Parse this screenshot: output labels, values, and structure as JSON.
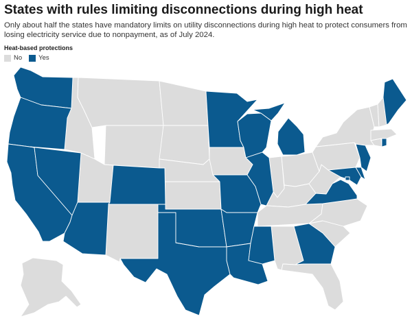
{
  "title": "States with rules limiting disconnections during high heat",
  "subtitle": "Only about half the states have mandatory limits on utility disconnections during high heat to protect consumers from losing electricity service due to nonpayment, as of July 2024.",
  "legend": {
    "title": "Heat-based protections",
    "items": [
      {
        "label": "No",
        "color": "#dcdcdc"
      },
      {
        "label": "Yes",
        "color": "#0b5a8f"
      }
    ]
  },
  "colors": {
    "no": "#dcdcdc",
    "yes": "#0b5a8f"
  },
  "states_with_protections": [
    "Washington",
    "Oregon",
    "California",
    "Nevada",
    "Arizona",
    "Colorado",
    "Texas",
    "Oklahoma",
    "Arkansas",
    "Louisiana",
    "Missouri",
    "Minnesota",
    "Wisconsin",
    "Illinois",
    "Michigan",
    "Mississippi",
    "Georgia",
    "Virginia",
    "Maryland",
    "Delaware",
    "New Jersey",
    "Rhode Island",
    "Maine",
    "District of Columbia"
  ],
  "states_without_protections": [
    "Idaho",
    "Montana",
    "Wyoming",
    "Utah",
    "New Mexico",
    "North Dakota",
    "South Dakota",
    "Nebraska",
    "Kansas",
    "Iowa",
    "Indiana",
    "Ohio",
    "Kentucky",
    "Tennessee",
    "Alabama",
    "Florida",
    "South Carolina",
    "North Carolina",
    "West Virginia",
    "Pennsylvania",
    "New York",
    "Vermont",
    "New Hampshire",
    "Massachusetts",
    "Connecticut",
    "Alaska"
  ]
}
